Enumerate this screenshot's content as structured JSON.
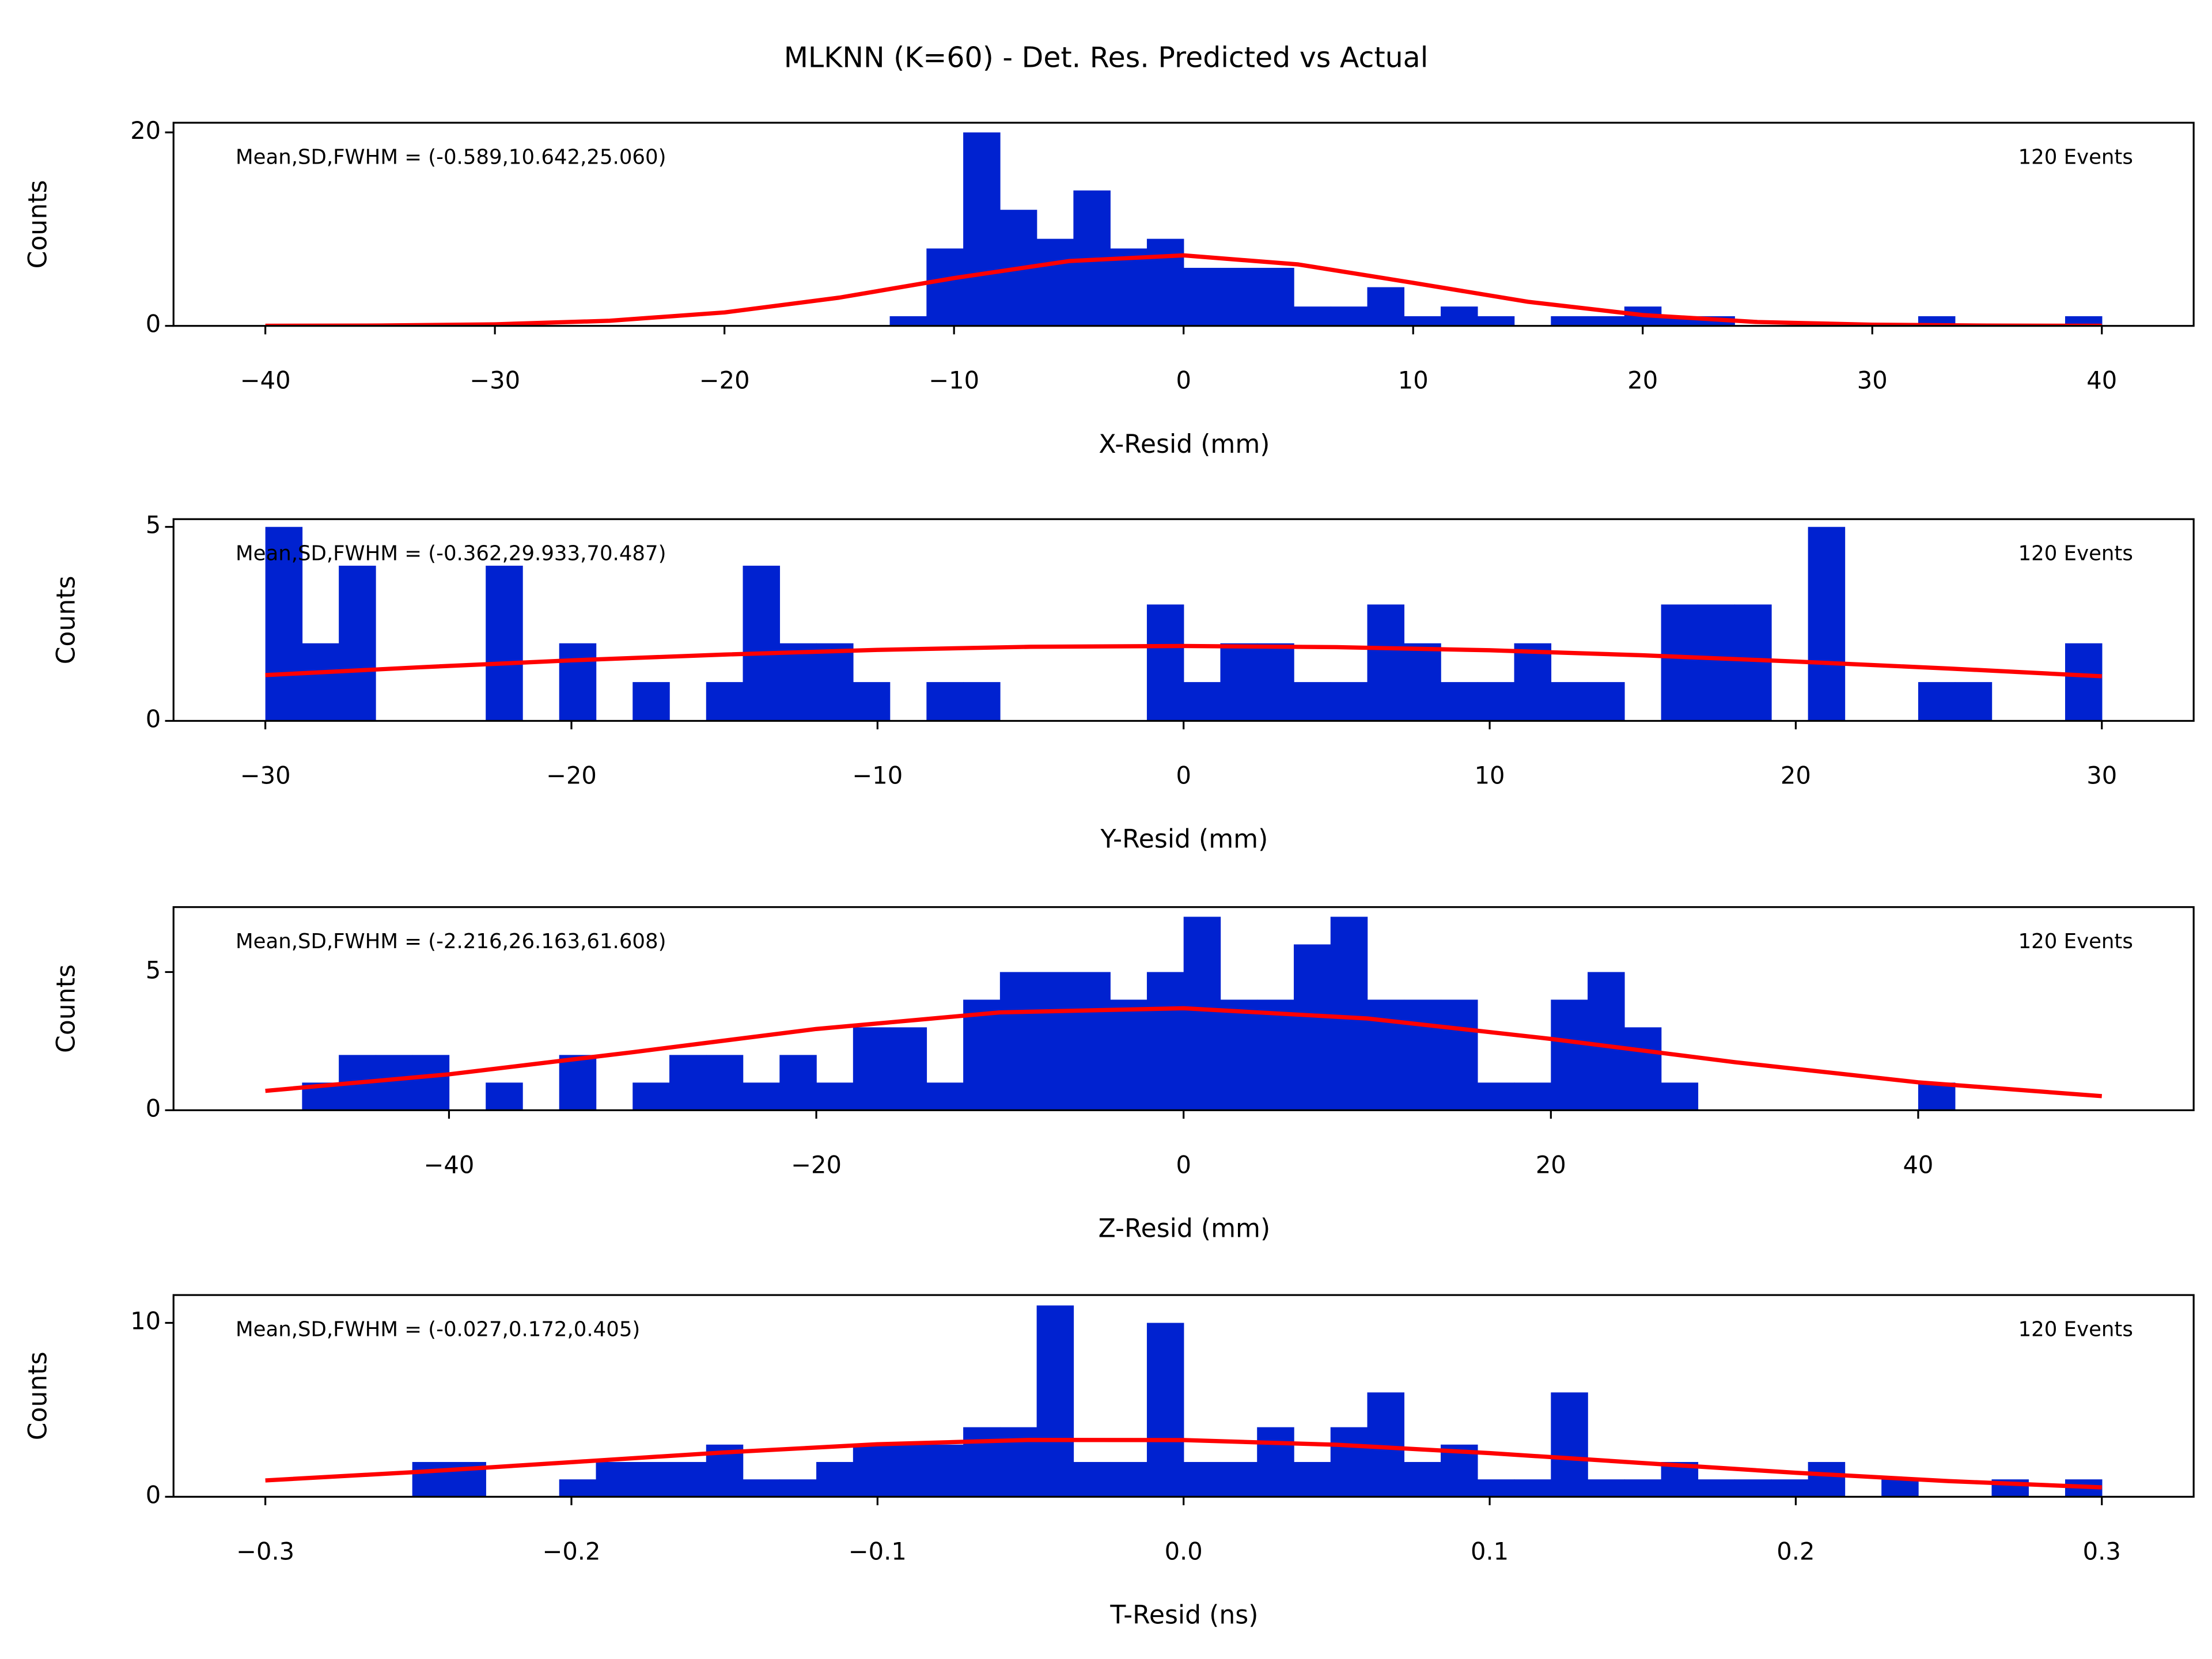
{
  "title": "MLKNN (K=60) - Det. Res. Predicted vs Actual",
  "chart_data": [
    {
      "type": "histogram",
      "annotation": "Mean,SD,FWHM = (-0.589,10.642,25.060)",
      "events": "120 Events",
      "xlabel": "X-Resid (mm)",
      "ylabel": "Counts",
      "color": "#0022d0",
      "bins": [
        -40,
        -38.4,
        -36.8,
        -35.2,
        -33.6,
        -32,
        -30.4,
        -28.8,
        -27.2,
        -25.6,
        -24,
        -22.4,
        -20.8,
        -19.2,
        -17.6,
        -16,
        -14.4,
        -12.8,
        -11.2,
        -9.6,
        -8,
        -6.4,
        -4.8,
        -3.2,
        -1.6,
        0,
        1.6,
        3.2,
        4.8,
        6.4,
        8,
        9.6,
        11.2,
        12.8,
        14.4,
        16,
        17.6,
        19.2,
        20.8,
        22.4,
        24,
        25.6,
        27.2,
        28.8,
        30.4,
        32,
        33.6,
        35.2,
        36.8,
        38.4,
        40
      ],
      "counts": [
        0,
        0,
        0,
        0,
        0,
        0,
        0,
        0,
        0,
        0,
        0,
        0,
        0,
        0,
        0,
        0,
        0,
        1,
        8,
        20,
        12,
        9,
        14,
        8,
        9,
        6,
        6,
        6,
        2,
        2,
        4,
        1,
        2,
        1,
        0,
        1,
        1,
        2,
        1,
        1,
        0,
        0,
        0,
        0,
        0,
        1,
        0,
        0,
        0,
        1
      ],
      "fit": {
        "color": "#ff0000",
        "x": [
          -40,
          -35,
          -30,
          -25,
          -20,
          -15,
          -10,
          -5,
          0,
          5,
          10,
          15,
          20,
          25,
          30,
          35,
          40
        ],
        "y": [
          0.01,
          0.04,
          0.16,
          0.53,
          1.39,
          2.92,
          4.94,
          6.7,
          7.29,
          6.35,
          4.45,
          2.49,
          1.12,
          0.4,
          0.12,
          0.03,
          0.01
        ]
      },
      "xlim": [
        -44,
        44
      ],
      "ylim": [
        0,
        21
      ],
      "xticks": [
        {
          "value": -40,
          "label": "−40"
        },
        {
          "value": -30,
          "label": "−30"
        },
        {
          "value": -20,
          "label": "−20"
        },
        {
          "value": -10,
          "label": "−10"
        },
        0,
        10,
        20,
        30,
        40
      ],
      "yticks": [
        0,
        20
      ]
    },
    {
      "type": "histogram",
      "annotation": "Mean,SD,FWHM = (-0.362,29.933,70.487)",
      "events": "120 Events",
      "xlabel": "Y-Resid (mm)",
      "ylabel": "Counts",
      "color": "#0022d0",
      "bins": [
        -30,
        -28.8,
        -27.6,
        -26.4,
        -25.2,
        -24,
        -22.8,
        -21.6,
        -20.4,
        -19.2,
        -18,
        -16.8,
        -15.6,
        -14.4,
        -13.2,
        -12,
        -10.8,
        -9.6,
        -8.4,
        -7.2,
        -6,
        -4.8,
        -3.6,
        -2.4,
        -1.2,
        0,
        1.2,
        2.4,
        3.6,
        4.8,
        6,
        7.2,
        8.4,
        9.6,
        10.8,
        12,
        13.2,
        14.4,
        15.6,
        16.8,
        18,
        19.2,
        20.4,
        21.6,
        22.8,
        24,
        25.2,
        26.4,
        27.6,
        28.8,
        30
      ],
      "counts": [
        5,
        2,
        4,
        0,
        0,
        0,
        4,
        0,
        2,
        0,
        1,
        0,
        1,
        4,
        2,
        2,
        1,
        0,
        1,
        1,
        0,
        0,
        0,
        0,
        3,
        1,
        2,
        2,
        1,
        1,
        3,
        2,
        1,
        1,
        2,
        1,
        1,
        0,
        3,
        3,
        3,
        0,
        5,
        0,
        0,
        1,
        1,
        0,
        0,
        2
      ],
      "fit": {
        "color": "#ff0000",
        "x": [
          -30,
          -25,
          -20,
          -15,
          -10,
          -5,
          0,
          5,
          10,
          15,
          20,
          25,
          30
        ],
        "y": [
          1.18,
          1.38,
          1.56,
          1.71,
          1.83,
          1.91,
          1.93,
          1.9,
          1.82,
          1.69,
          1.53,
          1.35,
          1.15
        ]
      },
      "xlim": [
        -33,
        33
      ],
      "ylim": [
        0,
        5.2
      ],
      "xticks": [
        {
          "value": -30,
          "label": "−30"
        },
        {
          "value": -20,
          "label": "−20"
        },
        {
          "value": -10,
          "label": "−10"
        },
        0,
        10,
        20,
        30
      ],
      "yticks": [
        0,
        5
      ]
    },
    {
      "type": "histogram",
      "annotation": "Mean,SD,FWHM = (-2.216,26.163,61.608)",
      "events": "120 Events",
      "xlabel": "Z-Resid (mm)",
      "ylabel": "Counts",
      "color": "#0022d0",
      "bins": [
        -50,
        -48,
        -46,
        -44,
        -42,
        -40,
        -38,
        -36,
        -34,
        -32,
        -30,
        -28,
        -26,
        -24,
        -22,
        -20,
        -18,
        -16,
        -14,
        -12,
        -10,
        -8,
        -6,
        -4,
        -2,
        0,
        2,
        4,
        6,
        8,
        10,
        12,
        14,
        16,
        18,
        20,
        22,
        24,
        26,
        28,
        30,
        32,
        34,
        36,
        38,
        40,
        42,
        44,
        46,
        48,
        50
      ],
      "counts": [
        0,
        1,
        2,
        2,
        2,
        0,
        1,
        0,
        2,
        0,
        1,
        2,
        2,
        1,
        2,
        1,
        3,
        3,
        1,
        4,
        5,
        5,
        5,
        4,
        5,
        7,
        4,
        4,
        6,
        7,
        4,
        4,
        4,
        1,
        1,
        4,
        5,
        3,
        1,
        0,
        0,
        0,
        0,
        0,
        0,
        1,
        0,
        0,
        0,
        0
      ],
      "fit": {
        "color": "#ff0000",
        "x": [
          -50,
          -40,
          -30,
          -20,
          -10,
          0,
          10,
          20,
          30,
          40,
          50
        ],
        "y": [
          0.7,
          1.3,
          2.1,
          2.94,
          3.54,
          3.69,
          3.32,
          2.58,
          1.74,
          1.01,
          0.51
        ]
      },
      "xlim": [
        -55,
        55
      ],
      "ylim": [
        0,
        7.35
      ],
      "xticks": [
        {
          "value": -40,
          "label": "−40"
        },
        {
          "value": -20,
          "label": "−20"
        },
        0,
        20,
        40
      ],
      "yticks": [
        0,
        5
      ]
    },
    {
      "type": "histogram",
      "annotation": "Mean,SD,FWHM = (-0.027,0.172,0.405)",
      "events": "120 Events",
      "xlabel": "T-Resid (ns)",
      "ylabel": "Counts",
      "color": "#0022d0",
      "bins": [
        -0.3,
        -0.288,
        -0.276,
        -0.264,
        -0.252,
        -0.24,
        -0.228,
        -0.216,
        -0.204,
        -0.192,
        -0.18,
        -0.168,
        -0.156,
        -0.144,
        -0.132,
        -0.12,
        -0.108,
        -0.096,
        -0.084,
        -0.072,
        -0.06,
        -0.048,
        -0.036,
        -0.024,
        -0.012,
        0,
        0.012,
        0.024,
        0.036,
        0.048,
        0.06,
        0.072,
        0.084,
        0.096,
        0.108,
        0.12,
        0.132,
        0.144,
        0.156,
        0.168,
        0.18,
        0.192,
        0.204,
        0.216,
        0.228,
        0.24,
        0.252,
        0.264,
        0.276,
        0.288,
        0.3
      ],
      "counts": [
        0,
        0,
        0,
        0,
        2,
        2,
        0,
        0,
        1,
        2,
        2,
        2,
        3,
        1,
        1,
        2,
        3,
        3,
        3,
        4,
        4,
        11,
        2,
        2,
        10,
        2,
        2,
        4,
        2,
        4,
        6,
        2,
        3,
        1,
        1,
        6,
        1,
        1,
        2,
        1,
        1,
        1,
        2,
        0,
        1,
        0,
        0,
        1,
        0,
        1
      ],
      "fit": {
        "color": "#ff0000",
        "x": [
          -0.3,
          -0.25,
          -0.2,
          -0.15,
          -0.1,
          -0.05,
          0,
          0.05,
          0.1,
          0.15,
          0.2,
          0.25,
          0.3
        ],
        "y": [
          0.94,
          1.43,
          1.99,
          2.55,
          3.02,
          3.27,
          3.26,
          2.99,
          2.51,
          1.94,
          1.38,
          0.9,
          0.54
        ]
      },
      "xlim": [
        -0.33,
        0.33
      ],
      "ylim": [
        0,
        11.6
      ],
      "xticks": [
        {
          "value": -0.3,
          "label": "−0.3"
        },
        {
          "value": -0.2,
          "label": "−0.2"
        },
        {
          "value": -0.1,
          "label": "−0.1"
        },
        {
          "value": 0,
          "label": "0.0"
        },
        0.1,
        0.2,
        0.3
      ],
      "yticks": [
        0,
        10
      ]
    }
  ]
}
